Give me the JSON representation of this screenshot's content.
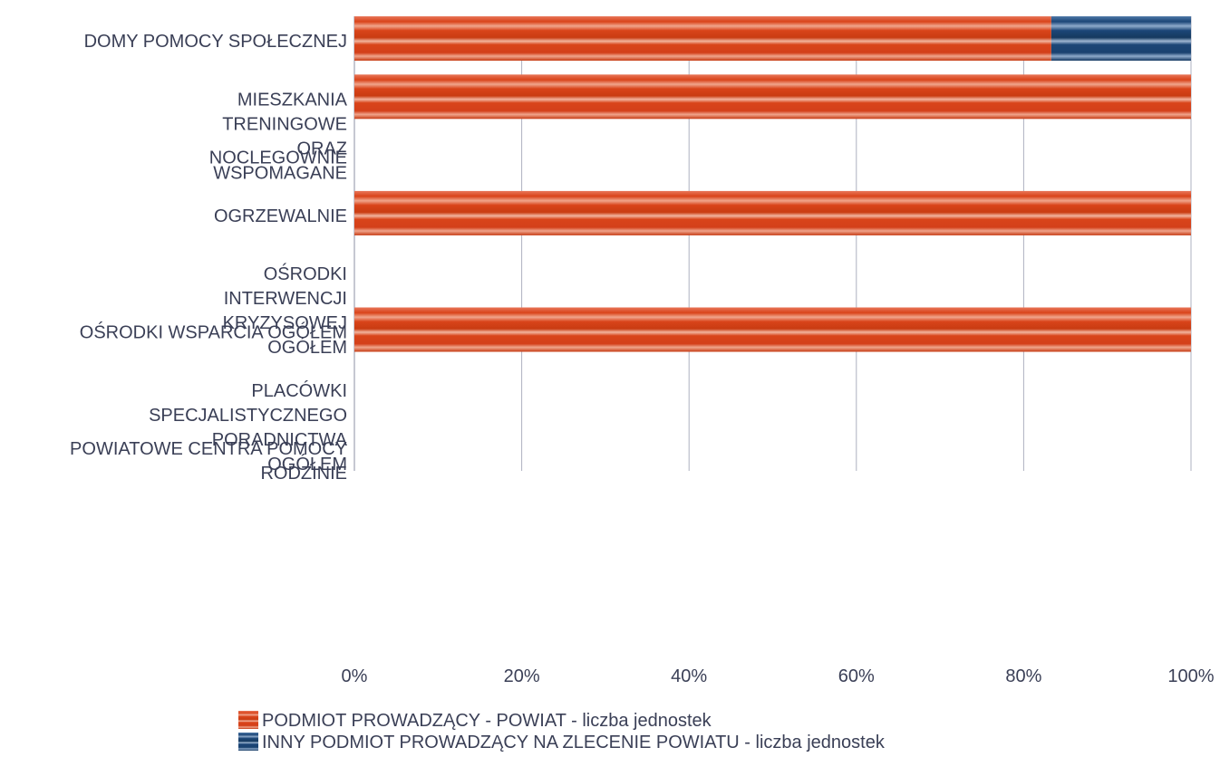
{
  "chart_data": {
    "type": "bar",
    "orientation": "horizontal",
    "stacked": "percent",
    "categories": [
      [
        "DOMY POMOCY SPOŁECZNEJ"
      ],
      [
        "MIESZKANIA",
        "TRENINGOWE",
        "ORAZ",
        "WSPOMAGANE"
      ],
      [
        "NOCLEGOWNIE"
      ],
      [
        "OGRZEWALNIE"
      ],
      [
        "OŚRODKI",
        "INTERWENCJI",
        "KRYZYSOWEJ",
        "OGÓŁEM"
      ],
      [
        "OŚRODKI WSPARCIA OGÓŁEM"
      ],
      [
        "PLACÓWKI",
        "SPECJALISTYCZNEGO",
        "PORADNICTWA",
        "OGÓŁEM"
      ],
      [
        "POWIATOWE CENTRA POMOCY",
        "RODZINIE"
      ]
    ],
    "series": [
      {
        "name": "PODMIOT PROWADZĄCY - POWIAT - liczba jednostek",
        "color": "#d9441a",
        "values": [
          83.3,
          100,
          0,
          100,
          0,
          100,
          0,
          0
        ]
      },
      {
        "name": "INNY PODMIOT PROWADZĄCY NA ZLECENIE POWIATU - liczba jednostek",
        "color": "#1c4677",
        "values": [
          16.7,
          0,
          0,
          0,
          0,
          0,
          0,
          0
        ]
      }
    ],
    "xlim": [
      0,
      100
    ],
    "x_ticks": [
      "0%",
      "20%",
      "40%",
      "60%",
      "80%",
      "100%"
    ],
    "grid": true,
    "legend_position": "bottom"
  }
}
